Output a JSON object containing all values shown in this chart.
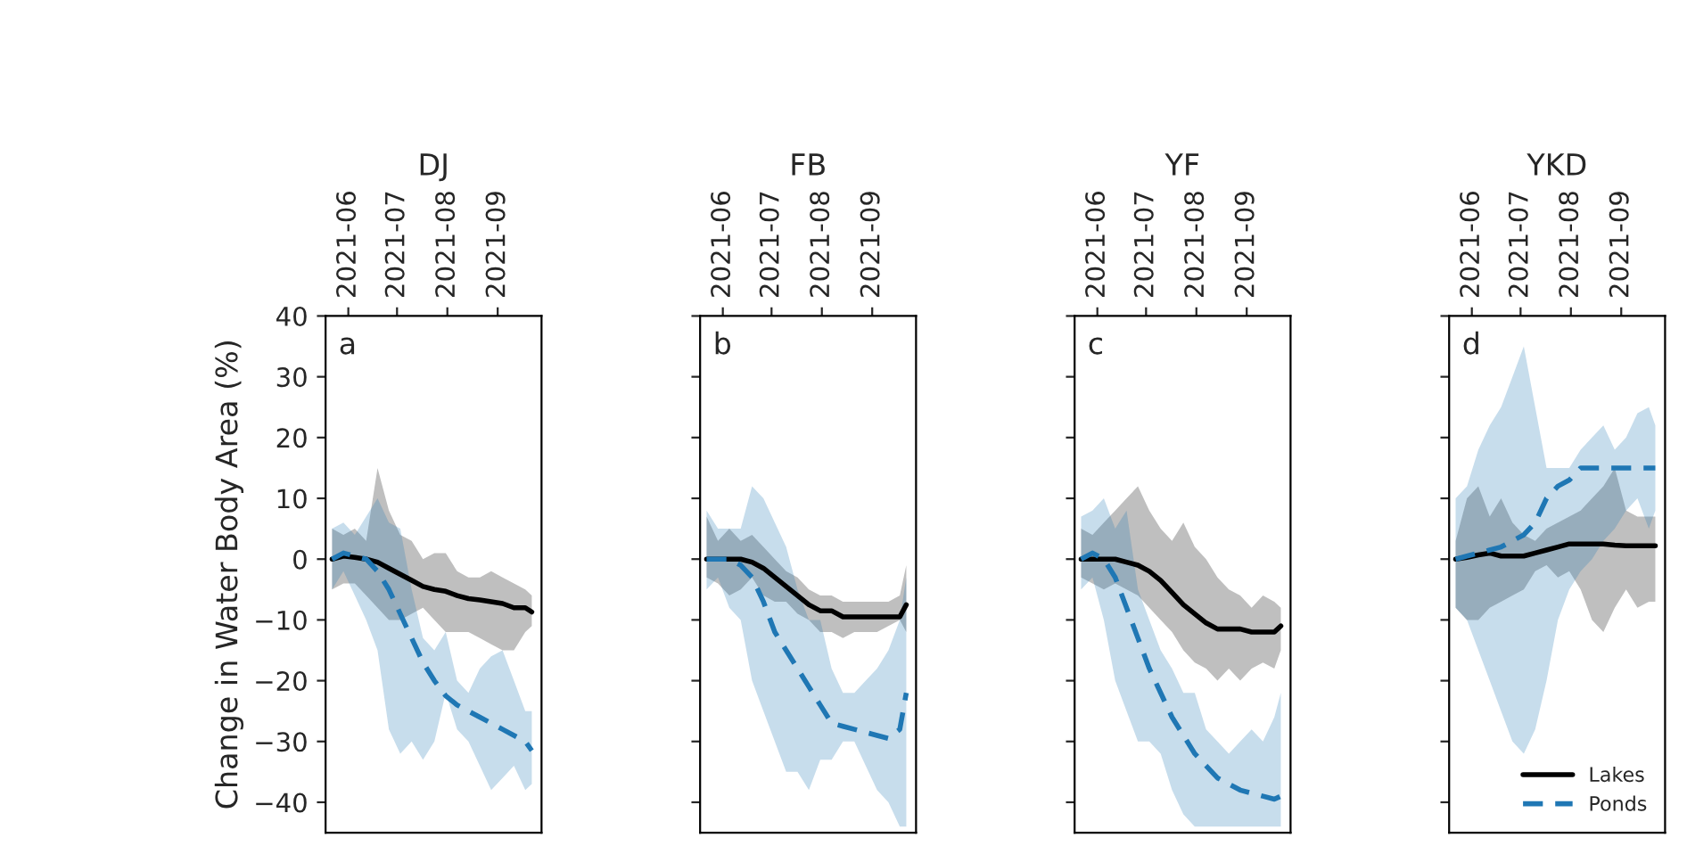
{
  "chart_data": [
    {
      "type": "line",
      "title": "DJ",
      "ylabel": "Change in Water Body Area (%)",
      "annotations": [
        "a"
      ],
      "legend": false,
      "grid": false,
      "x": [
        "2021-05-22",
        "2021-05-29",
        "2021-06-05",
        "2021-06-12",
        "2021-06-19",
        "2021-06-26",
        "2021-07-03",
        "2021-07-10",
        "2021-07-17",
        "2021-07-24",
        "2021-07-31",
        "2021-08-07",
        "2021-08-14",
        "2021-08-21",
        "2021-08-28",
        "2021-09-04",
        "2021-09-11",
        "2021-09-18",
        "2021-09-22"
      ],
      "xlim": [
        "2021-05-18",
        "2021-09-28"
      ],
      "xticks": [
        {
          "value": "2021-06-01",
          "label": "2021-06"
        },
        {
          "value": "2021-07-01",
          "label": "2021-07"
        },
        {
          "value": "2021-08-01",
          "label": "2021-08"
        },
        {
          "value": "2021-09-01",
          "label": "2021-09"
        }
      ],
      "ylim": [
        -45,
        40
      ],
      "yticks": [
        {
          "value": -40,
          "label": "−40"
        },
        {
          "value": -30,
          "label": "−30"
        },
        {
          "value": -20,
          "label": "−20"
        },
        {
          "value": -10,
          "label": "−10"
        },
        0,
        10,
        20,
        30,
        40
      ],
      "series": [
        {
          "color": "#000000",
          "line_style": "solid",
          "values": [
            0,
            0.5,
            0.3,
            0,
            -0.5,
            -1.5,
            -2.5,
            -3.5,
            -4.5,
            -5,
            -5.3,
            -6,
            -6.5,
            -6.7,
            -7,
            -7.3,
            -8,
            -8,
            -8.7
          ],
          "lower": [
            -5,
            -4,
            -4,
            -6,
            -8,
            -10,
            -10,
            -9,
            -8,
            -10,
            -12,
            -12,
            -12,
            -13,
            -14,
            -15,
            -15,
            -12,
            -11
          ],
          "upper": [
            5,
            4,
            5,
            3,
            15,
            8,
            4,
            3,
            0,
            1,
            1,
            -2,
            -3,
            -3,
            -2,
            -3,
            -4,
            -5,
            -6
          ]
        },
        {
          "color": "#1f77b4",
          "line_style": "dashed",
          "values": [
            0,
            1,
            0.5,
            0,
            -2,
            -5,
            -9,
            -13,
            -17,
            -20,
            -22.5,
            -24,
            -25,
            -26,
            -27,
            -28,
            -29,
            -30,
            -31.5
          ],
          "lower": [
            -5,
            -2,
            -6,
            -10,
            -15,
            -28,
            -32,
            -30,
            -33,
            -30,
            -22,
            -28,
            -30,
            -34,
            -38,
            -36,
            -34,
            -38,
            -37
          ],
          "upper": [
            5,
            6,
            4,
            7,
            10,
            6,
            5,
            -5,
            -13,
            -15,
            -12,
            -20,
            -22,
            -18,
            -16,
            -15,
            -20,
            -25,
            -25
          ]
        }
      ]
    },
    {
      "type": "line",
      "title": "FB",
      "annotations": [
        "b"
      ],
      "legend": false,
      "grid": false,
      "tick_labels": "x",
      "x": [
        "2021-05-22",
        "2021-05-29",
        "2021-06-05",
        "2021-06-12",
        "2021-06-19",
        "2021-06-26",
        "2021-07-03",
        "2021-07-10",
        "2021-07-17",
        "2021-07-24",
        "2021-07-31",
        "2021-08-07",
        "2021-08-14",
        "2021-08-21",
        "2021-08-28",
        "2021-09-04",
        "2021-09-11",
        "2021-09-18",
        "2021-09-22"
      ],
      "xlim": [
        "2021-05-18",
        "2021-09-28"
      ],
      "xticks": [
        {
          "value": "2021-06-01",
          "label": "2021-06"
        },
        {
          "value": "2021-07-01",
          "label": "2021-07"
        },
        {
          "value": "2021-08-01",
          "label": "2021-08"
        },
        {
          "value": "2021-09-01",
          "label": "2021-09"
        }
      ],
      "ylim": [
        -45,
        40
      ],
      "yticks": [
        -40,
        -30,
        -20,
        -10,
        0,
        10,
        20,
        30,
        40
      ],
      "series": [
        {
          "color": "#000000",
          "line_style": "solid",
          "values": [
            0,
            0,
            0,
            0,
            -0.5,
            -1.5,
            -3,
            -4.5,
            -6,
            -7.5,
            -8.5,
            -8.5,
            -9.5,
            -9.5,
            -9.5,
            -9.5,
            -9.5,
            -9.5,
            -7.5
          ],
          "lower": [
            -3,
            -4,
            -6,
            -5,
            -3,
            -6,
            -7,
            -7,
            -9,
            -10,
            -12,
            -12,
            -13,
            -12,
            -12,
            -12,
            -11,
            -10,
            -12
          ],
          "upper": [
            7,
            3,
            5,
            3,
            4,
            2,
            0,
            -2,
            -3,
            -5,
            -6,
            -6,
            -7,
            -7,
            -7,
            -7,
            -7,
            -6,
            -1
          ]
        },
        {
          "color": "#1f77b4",
          "line_style": "dashed",
          "values": [
            0,
            0,
            0,
            -1,
            -3,
            -7,
            -12,
            -15,
            -18,
            -21,
            -24,
            -27,
            -27.5,
            -28,
            -28.5,
            -29,
            -29.5,
            -28,
            -22
          ],
          "lower": [
            -5,
            -3,
            -8,
            -10,
            -20,
            -25,
            -30,
            -35,
            -35,
            -38,
            -33,
            -33,
            -30,
            -30,
            -34,
            -38,
            -40,
            -44,
            -44
          ],
          "upper": [
            8,
            5,
            5,
            5,
            12,
            10,
            6,
            2,
            -5,
            -10,
            -10,
            -18,
            -22,
            -22,
            -20,
            -18,
            -15,
            -10,
            -3
          ]
        }
      ]
    },
    {
      "type": "line",
      "title": "YF",
      "annotations": [
        "c"
      ],
      "legend": false,
      "grid": false,
      "tick_labels": "x",
      "x": [
        "2021-05-22",
        "2021-05-29",
        "2021-06-05",
        "2021-06-12",
        "2021-06-19",
        "2021-06-26",
        "2021-07-03",
        "2021-07-10",
        "2021-07-17",
        "2021-07-24",
        "2021-07-31",
        "2021-08-07",
        "2021-08-14",
        "2021-08-21",
        "2021-08-28",
        "2021-09-04",
        "2021-09-11",
        "2021-09-18",
        "2021-09-22"
      ],
      "xlim": [
        "2021-05-18",
        "2021-09-28"
      ],
      "xticks": [
        {
          "value": "2021-06-01",
          "label": "2021-06"
        },
        {
          "value": "2021-07-01",
          "label": "2021-07"
        },
        {
          "value": "2021-08-01",
          "label": "2021-08"
        },
        {
          "value": "2021-09-01",
          "label": "2021-09"
        }
      ],
      "ylim": [
        -45,
        40
      ],
      "yticks": [
        -40,
        -30,
        -20,
        -10,
        0,
        10,
        20,
        30,
        40
      ],
      "series": [
        {
          "color": "#000000",
          "line_style": "solid",
          "values": [
            0,
            0,
            0,
            0,
            -0.5,
            -1,
            -2,
            -3.5,
            -5.5,
            -7.5,
            -9,
            -10.5,
            -11.5,
            -11.5,
            -11.5,
            -12,
            -12,
            -12,
            -11
          ],
          "lower": [
            -3,
            -4,
            -5,
            -4,
            -5,
            -6,
            -8,
            -10,
            -12,
            -15,
            -17,
            -18,
            -20,
            -18,
            -20,
            -18,
            -17,
            -18,
            -15
          ],
          "upper": [
            5,
            4,
            6,
            8,
            10,
            12,
            8,
            5,
            3,
            6,
            2,
            0,
            -3,
            -5,
            -6,
            -8,
            -6,
            -7,
            -8
          ]
        },
        {
          "color": "#1f77b4",
          "line_style": "dashed",
          "values": [
            0,
            1,
            0,
            -3,
            -8,
            -13,
            -18,
            -22,
            -26,
            -29,
            -32,
            -34,
            -36,
            -37,
            -38,
            -38.5,
            -39,
            -39.5,
            -39
          ],
          "lower": [
            -5,
            -3,
            -10,
            -20,
            -25,
            -30,
            -30,
            -32,
            -38,
            -42,
            -44,
            -44,
            -44,
            -44,
            -44,
            -44,
            -44,
            -44,
            -44
          ],
          "upper": [
            7,
            8,
            10,
            5,
            8,
            -5,
            -10,
            -15,
            -18,
            -22,
            -22,
            -28,
            -30,
            -32,
            -30,
            -28,
            -30,
            -26,
            -22
          ]
        }
      ]
    },
    {
      "type": "line",
      "title": "YKD",
      "annotations": [
        "d"
      ],
      "legend": "bottom right",
      "grid": false,
      "tick_labels": "x",
      "x": [
        "2021-05-22",
        "2021-05-29",
        "2021-06-05",
        "2021-06-12",
        "2021-06-19",
        "2021-06-26",
        "2021-07-03",
        "2021-07-10",
        "2021-07-17",
        "2021-07-24",
        "2021-07-31",
        "2021-08-07",
        "2021-08-14",
        "2021-08-21",
        "2021-08-28",
        "2021-09-04",
        "2021-09-11",
        "2021-09-18",
        "2021-09-22"
      ],
      "xlim": [
        "2021-05-18",
        "2021-09-28"
      ],
      "xticks": [
        {
          "value": "2021-06-01",
          "label": "2021-06"
        },
        {
          "value": "2021-07-01",
          "label": "2021-07"
        },
        {
          "value": "2021-08-01",
          "label": "2021-08"
        },
        {
          "value": "2021-09-01",
          "label": "2021-09"
        }
      ],
      "ylim": [
        -45,
        40
      ],
      "yticks": [
        -40,
        -30,
        -20,
        -10,
        0,
        10,
        20,
        30,
        40
      ],
      "series": [
        {
          "name": "Lakes",
          "color": "#000000",
          "line_style": "solid",
          "values": [
            0,
            0.3,
            0.7,
            1,
            0.5,
            0.5,
            0.5,
            1,
            1.5,
            2,
            2.5,
            2.5,
            2.5,
            2.5,
            2.3,
            2.2,
            2.2,
            2.2,
            2.2
          ],
          "lower": [
            -8,
            -10,
            -10,
            -8,
            -7,
            -6,
            -5,
            -2,
            -1,
            -3,
            -2,
            -5,
            -10,
            -12,
            -8,
            -5,
            -8,
            -7,
            -7
          ],
          "upper": [
            3,
            10,
            12,
            7,
            10,
            6,
            4,
            3,
            5,
            6,
            7,
            8,
            10,
            12,
            15,
            8,
            7,
            7,
            7
          ]
        },
        {
          "name": "Ponds",
          "color": "#1f77b4",
          "line_style": "dashed",
          "values": [
            0,
            0.5,
            1,
            1.5,
            2,
            3,
            4,
            6,
            10,
            12,
            13,
            15,
            15,
            15,
            15,
            15,
            15,
            15,
            15
          ],
          "lower": [
            -8,
            -10,
            -15,
            -20,
            -25,
            -30,
            -32,
            -28,
            -20,
            -10,
            -5,
            -2,
            0,
            3,
            5,
            8,
            10,
            5,
            8
          ],
          "upper": [
            10,
            12,
            18,
            22,
            25,
            30,
            35,
            25,
            15,
            15,
            15,
            18,
            20,
            22,
            18,
            20,
            24,
            25,
            22
          ]
        }
      ]
    }
  ]
}
